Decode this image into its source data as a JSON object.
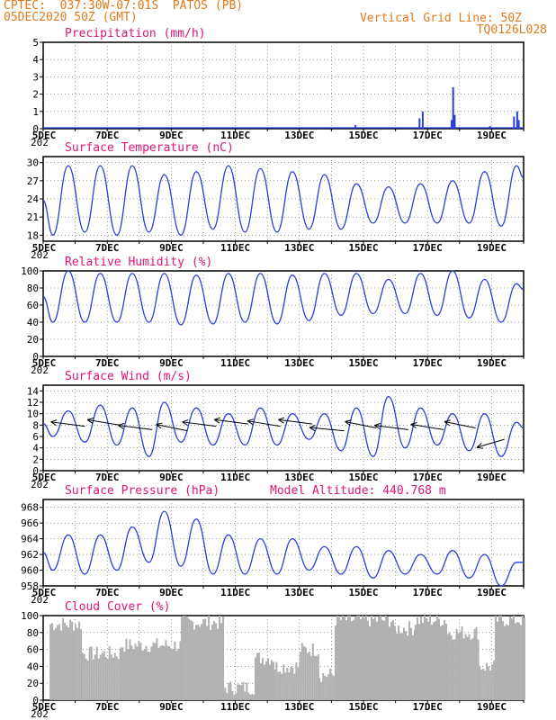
{
  "header": {
    "line1_left": "CPTEC:  037:30W-07:01S  PATOS (PB)",
    "line2_left": "05DEC2020 50Z (GMT)",
    "line1_right": "Vertical Grid Line: 50Z",
    "line2_right": "TQ0126L028",
    "color": "#e07a1c"
  },
  "colors": {
    "title": "#e0157a",
    "line": "#2a3fdc",
    "cloud": "#b0b0b0",
    "arrow": "#000000"
  },
  "x_axis": {
    "labels": [
      "5DEC",
      "7DEC",
      "9DEC",
      "11DEC",
      "13DEC",
      "15DEC",
      "17DEC",
      "19DEC"
    ],
    "label_days": [
      5,
      7,
      9,
      11,
      13,
      15,
      17,
      19
    ],
    "year_stub": "202",
    "range_days": [
      5,
      20
    ]
  },
  "chart_data": [
    {
      "type": "bar",
      "title": "Precipitation (mm/h)",
      "ylim": [
        0,
        5
      ],
      "yticks": [
        0,
        1,
        2,
        3,
        4,
        5
      ],
      "x": [
        14.75,
        16.75,
        16.85,
        17.75,
        17.8,
        17.85,
        18.95,
        19.7,
        19.8,
        19.85
      ],
      "values": [
        0.2,
        0.6,
        1.0,
        0.5,
        2.4,
        0.8,
        0.15,
        0.7,
        1.0,
        0.5
      ]
    },
    {
      "type": "line",
      "title": "Surface Temperature (nC)",
      "ylim": [
        17,
        31
      ],
      "yticks": [
        18,
        21,
        24,
        27,
        30
      ],
      "mins": [
        18,
        18.5,
        18,
        18.5,
        18,
        19,
        18.5,
        18.5,
        19,
        19,
        20,
        20,
        20,
        20,
        19.5
      ],
      "maxs": [
        29.5,
        29.5,
        29.5,
        28,
        28.5,
        29.5,
        29,
        28.5,
        28,
        26.5,
        26,
        26.5,
        27,
        28.5,
        29.5
      ],
      "end_max": 27.5
    },
    {
      "type": "line",
      "title": "Relative Humidity (%)",
      "ylim": [
        0,
        100
      ],
      "yticks": [
        0,
        20,
        40,
        60,
        80,
        100
      ],
      "mins": [
        40,
        40,
        40,
        40,
        37,
        38,
        40,
        38,
        42,
        48,
        50,
        50,
        48,
        45,
        40
      ],
      "maxs": [
        100,
        97,
        97,
        97,
        95,
        97,
        97,
        95,
        97,
        97,
        90,
        97,
        100,
        90,
        85
      ],
      "end_max": 78
    },
    {
      "type": "line",
      "title": "Surface Wind (m/s)",
      "ylim": [
        0,
        15
      ],
      "yticks": [
        0,
        2,
        4,
        6,
        8,
        10,
        12,
        14
      ],
      "mins": [
        6,
        5,
        4.5,
        2.5,
        5,
        4.5,
        4.5,
        4.5,
        5.5,
        3.5,
        2.5,
        4,
        4.5,
        3.5,
        2.5
      ],
      "maxs": [
        10.5,
        11.5,
        11,
        12,
        11,
        10,
        11,
        10,
        10,
        11,
        13,
        11,
        10,
        10,
        8.5
      ],
      "end_max": 7.5,
      "wind_arrows": [
        {
          "day": 6.3,
          "speed": 7.8,
          "dir_deg": 160
        },
        {
          "day": 7.4,
          "speed": 8.0,
          "dir_deg": 155
        },
        {
          "day": 8.4,
          "speed": 7.2,
          "dir_deg": 160
        },
        {
          "day": 9.5,
          "speed": 7.0,
          "dir_deg": 150
        },
        {
          "day": 10.4,
          "speed": 7.8,
          "dir_deg": 160
        },
        {
          "day": 11.4,
          "speed": 8.2,
          "dir_deg": 160
        },
        {
          "day": 12.4,
          "speed": 7.8,
          "dir_deg": 155
        },
        {
          "day": 13.4,
          "speed": 8.2,
          "dir_deg": 160
        },
        {
          "day": 14.4,
          "speed": 7.0,
          "dir_deg": 165
        },
        {
          "day": 15.4,
          "speed": 7.5,
          "dir_deg": 150
        },
        {
          "day": 16.4,
          "speed": 7.2,
          "dir_deg": 160
        },
        {
          "day": 17.5,
          "speed": 7.2,
          "dir_deg": 155
        },
        {
          "day": 18.5,
          "speed": 7.5,
          "dir_deg": 150
        },
        {
          "day": 19.4,
          "speed": 5.5,
          "dir_deg": 220
        }
      ]
    },
    {
      "type": "line",
      "title": "Surface Pressure (hPa)",
      "annotation": "Model Altitude: 440.768 m",
      "ylim": [
        958,
        969
      ],
      "yticks": [
        958,
        960,
        962,
        964,
        966,
        968
      ],
      "mins": [
        960,
        959.5,
        960,
        961,
        960.5,
        959.5,
        959.5,
        959.5,
        960,
        959.5,
        959,
        959.5,
        959.5,
        959,
        958
      ],
      "maxs": [
        964.5,
        964.5,
        965.5,
        967.5,
        966.5,
        964.5,
        964,
        964,
        963,
        963,
        962.5,
        962,
        962.5,
        962,
        961
      ],
      "end_max": 961
    },
    {
      "type": "area",
      "title": "Cloud Cover (%)",
      "ylim": [
        0,
        100
      ],
      "yticks": [
        0,
        20,
        40,
        60,
        80,
        100
      ],
      "segments": [
        {
          "from": 5.2,
          "to": 6.2,
          "level": 90
        },
        {
          "from": 6.2,
          "to": 7.4,
          "level": 55
        },
        {
          "from": 7.4,
          "to": 9.3,
          "level": 65
        },
        {
          "from": 9.3,
          "to": 10.6,
          "level": 92
        },
        {
          "from": 10.6,
          "to": 11.6,
          "level": 15
        },
        {
          "from": 11.6,
          "to": 12.2,
          "level": 50
        },
        {
          "from": 12.2,
          "to": 13.0,
          "level": 40
        },
        {
          "from": 13.0,
          "to": 13.6,
          "level": 60
        },
        {
          "from": 13.6,
          "to": 14.1,
          "level": 30
        },
        {
          "from": 14.1,
          "to": 15.9,
          "level": 95
        },
        {
          "from": 15.9,
          "to": 16.6,
          "level": 85
        },
        {
          "from": 16.6,
          "to": 17.6,
          "level": 95
        },
        {
          "from": 17.6,
          "to": 18.6,
          "level": 80
        },
        {
          "from": 18.6,
          "to": 19.1,
          "level": 40
        },
        {
          "from": 19.1,
          "to": 20.0,
          "level": 95
        }
      ]
    }
  ]
}
